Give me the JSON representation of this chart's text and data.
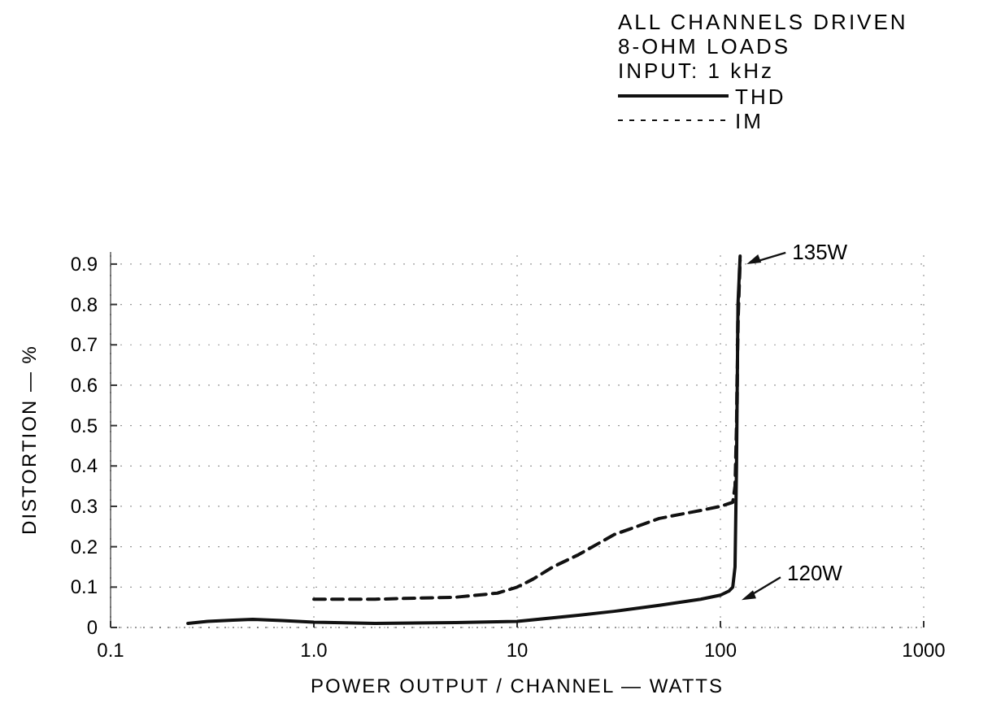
{
  "chart_data": {
    "type": "line",
    "xlabel": "POWER OUTPUT / CHANNEL — WATTS",
    "ylabel": "DISTORTION — %",
    "log": "x",
    "xlim": [
      0.1,
      1000
    ],
    "ylim": [
      0,
      0.93
    ],
    "xticks": [
      0.1,
      {
        "value": 1,
        "label": "1.0"
      },
      10,
      100,
      1000
    ],
    "yticks": [
      0,
      0.1,
      0.2,
      0.3,
      0.4,
      0.5,
      0.6,
      0.7,
      0.8,
      0.9
    ],
    "grid": true,
    "legend": "top right",
    "marker": "none",
    "annotations": [
      "ALL CHANNELS DRIVEN",
      "8-OHM LOADS",
      "INPUT: 1 kHz",
      {
        "text": "135W",
        "x": 125,
        "y": 0.92
      },
      {
        "text": "120W",
        "x": 118,
        "y": 0.1
      }
    ],
    "series": [
      {
        "name": "THD",
        "color": "#111111",
        "line_style": "solid",
        "x": [
          0.24,
          0.3,
          0.4,
          0.5,
          0.7,
          1,
          2,
          5,
          10,
          20,
          30,
          50,
          80,
          100,
          110,
          115,
          118,
          120,
          122,
          125
        ],
        "values": [
          0.01,
          0.015,
          0.018,
          0.02,
          0.017,
          0.013,
          0.01,
          0.012,
          0.015,
          0.03,
          0.04,
          0.055,
          0.07,
          0.08,
          0.09,
          0.1,
          0.15,
          0.4,
          0.8,
          0.92
        ]
      },
      {
        "name": "IM",
        "color": "#111111",
        "line_style": "dashed",
        "x": [
          1,
          2,
          5,
          8,
          10,
          12,
          15,
          20,
          30,
          50,
          80,
          100,
          115,
          118,
          120,
          122,
          125
        ],
        "values": [
          0.07,
          0.07,
          0.075,
          0.085,
          0.1,
          0.12,
          0.15,
          0.18,
          0.23,
          0.27,
          0.29,
          0.3,
          0.31,
          0.35,
          0.5,
          0.75,
          0.91
        ]
      }
    ]
  }
}
